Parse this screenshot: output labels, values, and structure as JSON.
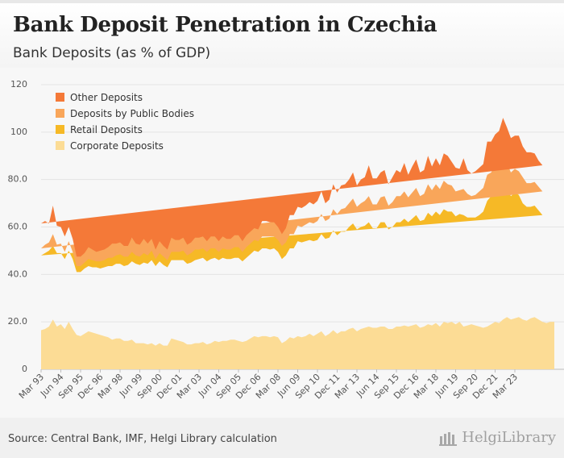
{
  "header": {
    "title": "Bank Deposit Penetration in Czechia",
    "subtitle": "Bank Deposits (as % of GDP)"
  },
  "footer": {
    "source": "Source: Central Bank, IMF, Helgi Library calculation",
    "logo_text": "HelgiLibrary",
    "logo_icon": "helgi-library-logo-icon"
  },
  "chart_data": {
    "type": "area",
    "stacked": true,
    "title": "Bank Deposit Penetration in Czechia",
    "subtitle": "Bank Deposits (as % of GDP)",
    "xlabel": "",
    "ylabel": "",
    "ylim": [
      0,
      120
    ],
    "y_ticks": [
      0,
      20.0,
      40.0,
      60.0,
      80.0,
      100,
      120
    ],
    "y_tick_labels": [
      "0",
      "20.0",
      "40.0",
      "60.0",
      "80.0",
      "100",
      "120"
    ],
    "grid": true,
    "legend_position": "top-left",
    "x_tick_labels": [
      "Mar 93",
      "Jun 94",
      "Sep 95",
      "Dec 96",
      "Mar 98",
      "Jun 99",
      "Sep 00",
      "Dec 01",
      "Mar 03",
      "Jun 04",
      "Sep 05",
      "Dec 06",
      "Mar 08",
      "Jun 09",
      "Sep 10",
      "Dec 11",
      "Mar 13",
      "Jun 14",
      "Sep 15",
      "Dec 16",
      "Mar 18",
      "Jun 19",
      "Sep 20",
      "Dec 21",
      "Mar 23"
    ],
    "colors": {
      "Corporate Deposits": "#fcdc95",
      "Retail Deposits": "#f6b926",
      "Deposits by Public Bodies": "#f9a65a",
      "Other Deposits": "#f47938"
    },
    "legend_order": [
      "Other Deposits",
      "Deposits by Public Bodies",
      "Retail Deposits",
      "Corporate Deposits"
    ],
    "x_start": "Mar 93",
    "frequency": "quarterly",
    "series": [
      {
        "name": "Corporate Deposits",
        "values": [
          16.5,
          17,
          18,
          21,
          18,
          19,
          17,
          20,
          17,
          14.5,
          14,
          15,
          16,
          15.5,
          15,
          14.5,
          14,
          13.5,
          12.5,
          13,
          13,
          12,
          12,
          12.5,
          11,
          11,
          11,
          10.5,
          11,
          10,
          11,
          10,
          10,
          13,
          12.5,
          12,
          11.5,
          10.5,
          10.5,
          11,
          11,
          11.5,
          10.5,
          11,
          12,
          11.5,
          12,
          12,
          12.5,
          12.5,
          12,
          11.5,
          12,
          13,
          14,
          13.5,
          14,
          14,
          13.5,
          14,
          13.5,
          11,
          12,
          13.5,
          13,
          14,
          13.5,
          14,
          15,
          14,
          15,
          16,
          14,
          15,
          16.5,
          15,
          16,
          16,
          17,
          17.5,
          16,
          17,
          17.5,
          18,
          17.5,
          17.5,
          18,
          18,
          17,
          17,
          18,
          18,
          18.5,
          18,
          18.5,
          19,
          17.5,
          18,
          19,
          18.5,
          19.5,
          18,
          20,
          19.5,
          20,
          19,
          20,
          18,
          18.5,
          19,
          18.5,
          18,
          17.5,
          18,
          19,
          20,
          19.5,
          21,
          22,
          21,
          21.5,
          22,
          21,
          20.5,
          21.5,
          22,
          21,
          20,
          19.5,
          20,
          20
        ]
      },
      {
        "name": "Retail Deposits",
        "values": [
          31.5,
          32,
          32,
          31,
          31,
          30,
          29.5,
          30,
          29.5,
          26.5,
          27,
          27.5,
          27.5,
          27.5,
          28,
          28,
          29,
          30,
          31,
          31.5,
          31.5,
          31.5,
          32,
          33,
          33.5,
          33,
          34,
          34,
          35,
          33.5,
          34.5,
          34,
          33,
          33,
          33.5,
          34,
          34.5,
          34,
          34.5,
          35,
          35.5,
          35.5,
          35,
          35.5,
          35,
          34.5,
          35,
          34.5,
          34,
          34.5,
          35,
          34,
          35,
          35.5,
          36,
          36,
          37,
          37,
          37,
          37,
          36,
          35.5,
          36,
          37.5,
          38,
          40,
          40,
          40,
          39.5,
          40,
          39.5,
          41,
          41,
          40.5,
          42,
          41.5,
          42,
          42,
          43,
          44,
          43,
          43,
          43,
          44,
          42,
          42,
          44,
          44,
          42,
          43,
          44,
          44,
          45,
          44,
          45,
          46,
          45,
          45,
          47,
          46,
          47,
          47,
          47.5,
          47,
          46.5,
          45.5,
          45.5,
          47,
          45.5,
          45,
          45.5,
          47,
          49,
          53,
          54,
          55,
          56,
          54,
          54,
          52,
          53,
          51.5,
          49,
          48,
          47,
          47,
          46,
          45
        ]
      },
      {
        "name": "Deposits by Public Bodies",
        "values": [
          3,
          3.5,
          3.5,
          5,
          3.5,
          4,
          3,
          4,
          3,
          2.5,
          2.5,
          2.5,
          3,
          3,
          2.5,
          3,
          3,
          3.5,
          3.5,
          3.5,
          4,
          4,
          3.5,
          4,
          3.5,
          3.5,
          4,
          3.5,
          4,
          3,
          3.5,
          3.5,
          3,
          3.5,
          3.5,
          3.5,
          4,
          3.5,
          4,
          4.5,
          4,
          4,
          4,
          4.5,
          4,
          3.5,
          4,
          4,
          4,
          4.5,
          4.5,
          4,
          4.5,
          4.5,
          4.5,
          4.5,
          5,
          5,
          5.5,
          5,
          5,
          5.5,
          5.5,
          6,
          6,
          6.5,
          6.5,
          7,
          7.5,
          7.5,
          8,
          8.5,
          7.5,
          8,
          9,
          9,
          9.5,
          10,
          10,
          10.5,
          9.5,
          10,
          10.5,
          11,
          10,
          10,
          10.5,
          11,
          10,
          10.5,
          11,
          11,
          11.5,
          10.5,
          11,
          11.5,
          10.5,
          11,
          12,
          11,
          11.5,
          11,
          12,
          11.5,
          11,
          10.5,
          10,
          11,
          10,
          9,
          9.5,
          10,
          10,
          11,
          10,
          11,
          11,
          11,
          11,
          10,
          10,
          10,
          11,
          10,
          10,
          10,
          10,
          10
        ]
      },
      {
        "name": "Other Deposits",
        "values": [
          10.5,
          10,
          8,
          12,
          8,
          7,
          6.5,
          6,
          5.5,
          4,
          4,
          4,
          5,
          4.5,
          4,
          4.5,
          4.5,
          4.5,
          6,
          5,
          5,
          4.5,
          4.5,
          6,
          5,
          5,
          6,
          5,
          5,
          4,
          5,
          4.5,
          4.5,
          6,
          5,
          5,
          5.5,
          4.5,
          4.5,
          5,
          5,
          5,
          4.5,
          5,
          5,
          4.5,
          5,
          4.5,
          4.5,
          5,
          5,
          4.5,
          5,
          5,
          5,
          5,
          6.5,
          6.5,
          6,
          6,
          5.5,
          5,
          6,
          8,
          8,
          8,
          8,
          8,
          8.5,
          8,
          8.5,
          9.5,
          7.5,
          8,
          10.5,
          9,
          10,
          10,
          10,
          11,
          9,
          10,
          10,
          13,
          11,
          11,
          10.5,
          11,
          9,
          10.5,
          11,
          10,
          12,
          9.5,
          11,
          12,
          10,
          10,
          12,
          10,
          11,
          10,
          11.5,
          12,
          10,
          10,
          9,
          13,
          10,
          9.5,
          10,
          10,
          10,
          14,
          13,
          13,
          14,
          20,
          15,
          14.5,
          14,
          15,
          13,
          13,
          13,
          12,
          11,
          11
        ]
      }
    ]
  }
}
